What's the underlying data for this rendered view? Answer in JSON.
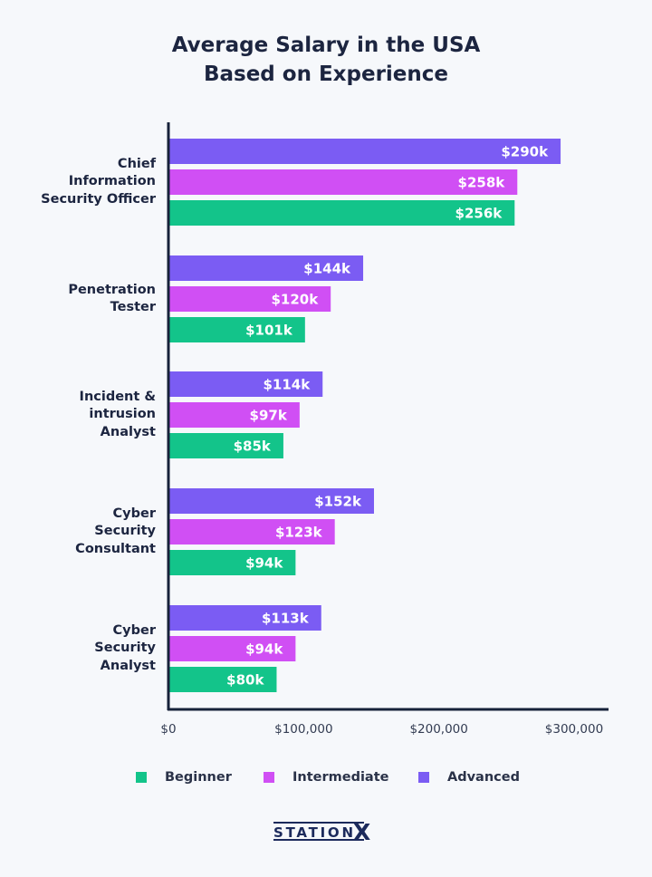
{
  "chart_data": {
    "type": "bar",
    "orientation": "horizontal",
    "title": "Average Salary in the USA Based on Experience",
    "title_lines": [
      "Average Salary in the USA",
      "Based on Experience"
    ],
    "categories": [
      "Chief Information Security Officer",
      "Penetration Tester",
      "Incident & intrusion Analyst",
      "Cyber Security Consultant",
      "Cyber Security Analyst"
    ],
    "category_lines": [
      [
        "Chief",
        "Information",
        "Security Officer"
      ],
      [
        "Penetration",
        "Tester"
      ],
      [
        "Incident &",
        "intrusion",
        "Analyst"
      ],
      [
        "Cyber",
        "Security",
        "Consultant"
      ],
      [
        "Cyber",
        "Security",
        "Analyst"
      ]
    ],
    "series": [
      {
        "name": "Advanced",
        "color": "#7b5cf3",
        "values": [
          290000,
          144000,
          114000,
          152000,
          113000
        ],
        "labels": [
          "$290k",
          "$144k",
          "$114k",
          "$152k",
          "$113k"
        ]
      },
      {
        "name": "Intermediate",
        "color": "#d04ff4",
        "values": [
          258000,
          120000,
          97000,
          123000,
          94000
        ],
        "labels": [
          "$258k",
          "$120k",
          "$97k",
          "$123k",
          "$94k"
        ]
      },
      {
        "name": "Beginner",
        "color": "#13c48a",
        "values": [
          256000,
          101000,
          85000,
          94000,
          80000
        ],
        "labels": [
          "$256k",
          "$101k",
          "$85k",
          "$94k",
          "$80k"
        ]
      }
    ],
    "xlim": [
      0,
      300000
    ],
    "xticks": [
      0,
      100000,
      200000,
      300000
    ],
    "xtick_labels": [
      "$0",
      "$100,000",
      "$200,000",
      "$300,000"
    ],
    "xlabel": "",
    "ylabel": "",
    "grid": false,
    "legend": {
      "placement": "bottom",
      "order": [
        "Beginner",
        "Intermediate",
        "Advanced"
      ]
    }
  },
  "brand": {
    "logo_text": "STATIONX"
  }
}
